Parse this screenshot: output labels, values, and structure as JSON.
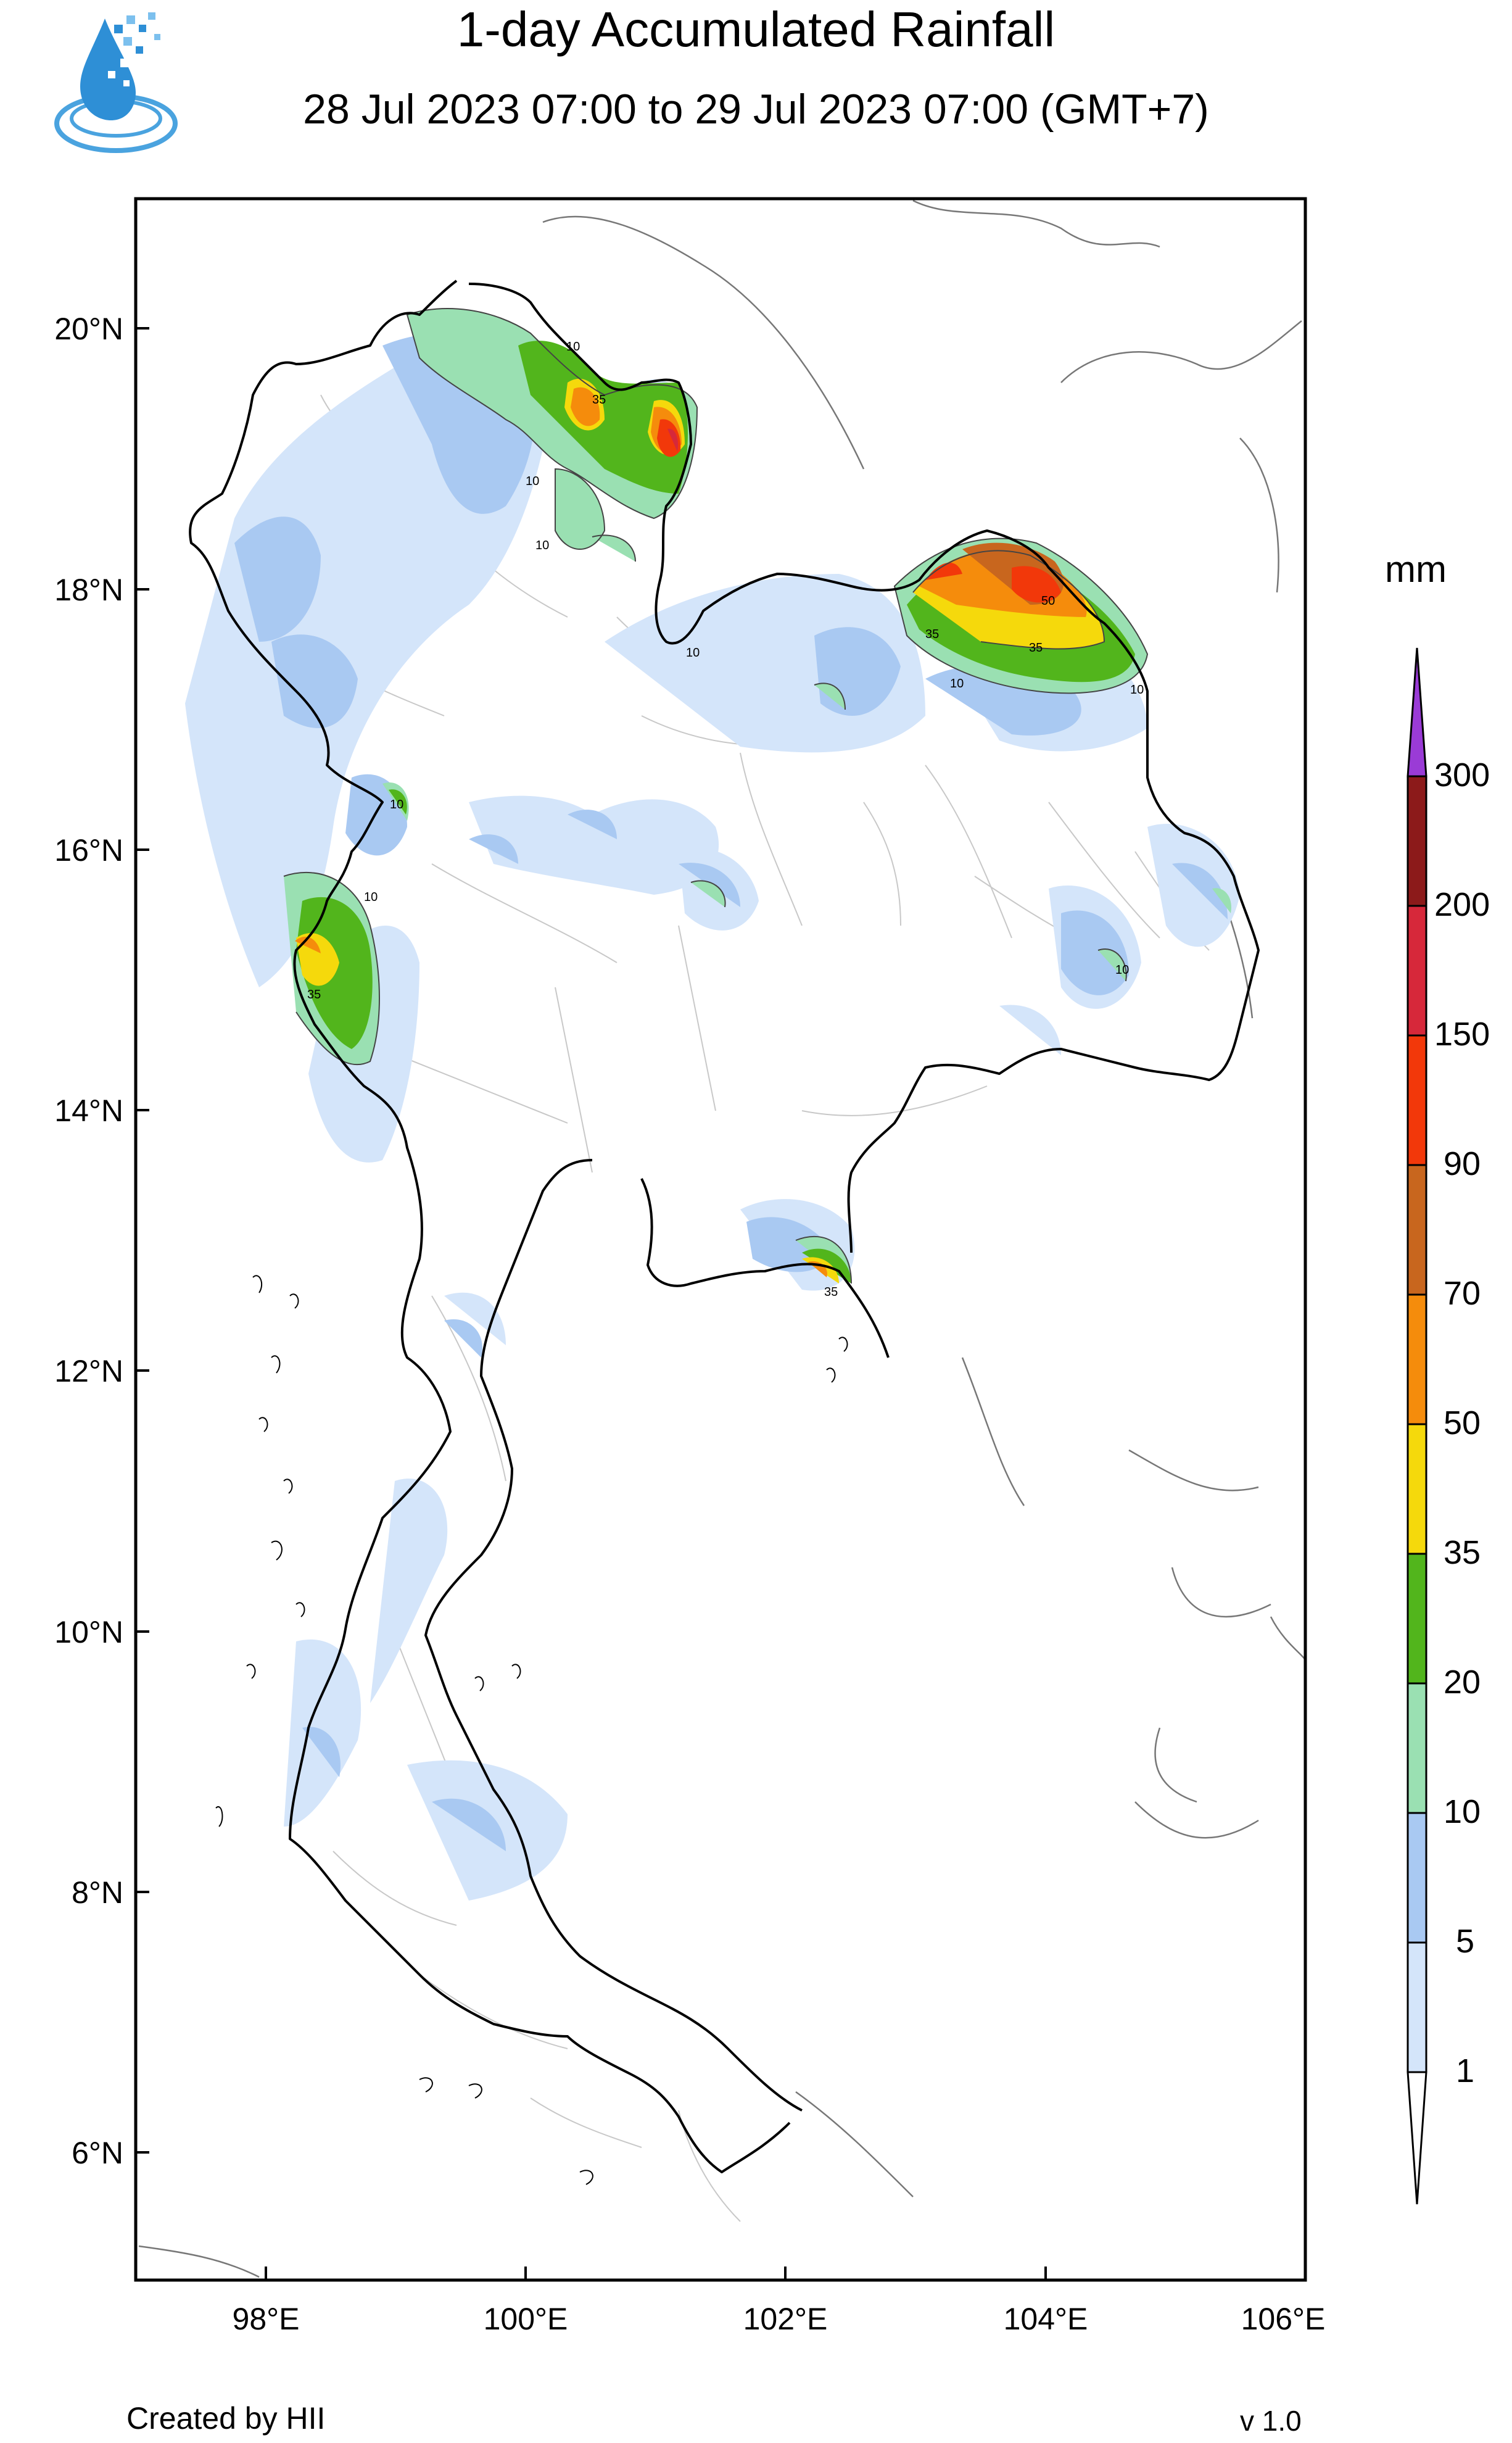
{
  "title": "1-day Accumulated Rainfall",
  "subtitle": "28 Jul 2023 07:00 to 29 Jul 2023 07:00 (GMT+7)",
  "logo_icon": "water-drop-logo-icon",
  "map": {
    "lon_range": [
      97,
      106
    ],
    "lat_range": [
      5,
      21
    ],
    "lon_ticks": [
      "98°E",
      "100°E",
      "102°E",
      "104°E",
      "106°E"
    ],
    "lat_ticks": [
      "20°N",
      "18°N",
      "16°N",
      "14°N",
      "12°N",
      "10°N",
      "8°N",
      "6°N"
    ],
    "contour_labels": [
      "10",
      "35",
      "10",
      "10",
      "10",
      "35",
      "50",
      "10",
      "35",
      "10",
      "10",
      "10",
      "35",
      "10",
      "35"
    ]
  },
  "colorbar": {
    "unit": "mm",
    "levels": [
      "1",
      "5",
      "10",
      "20",
      "35",
      "50",
      "70",
      "90",
      "150",
      "200",
      "300"
    ],
    "colors": [
      "#d4e5fa",
      "#a9c9f2",
      "#9ae0b2",
      "#52b51c",
      "#f5d90c",
      "#f58c0c",
      "#c8661e",
      "#f2380a",
      "#d6283a",
      "#8c1a1a",
      "#9a3bd6"
    ]
  },
  "footer": {
    "credit": "Created by HII",
    "version": "v 1.0"
  }
}
